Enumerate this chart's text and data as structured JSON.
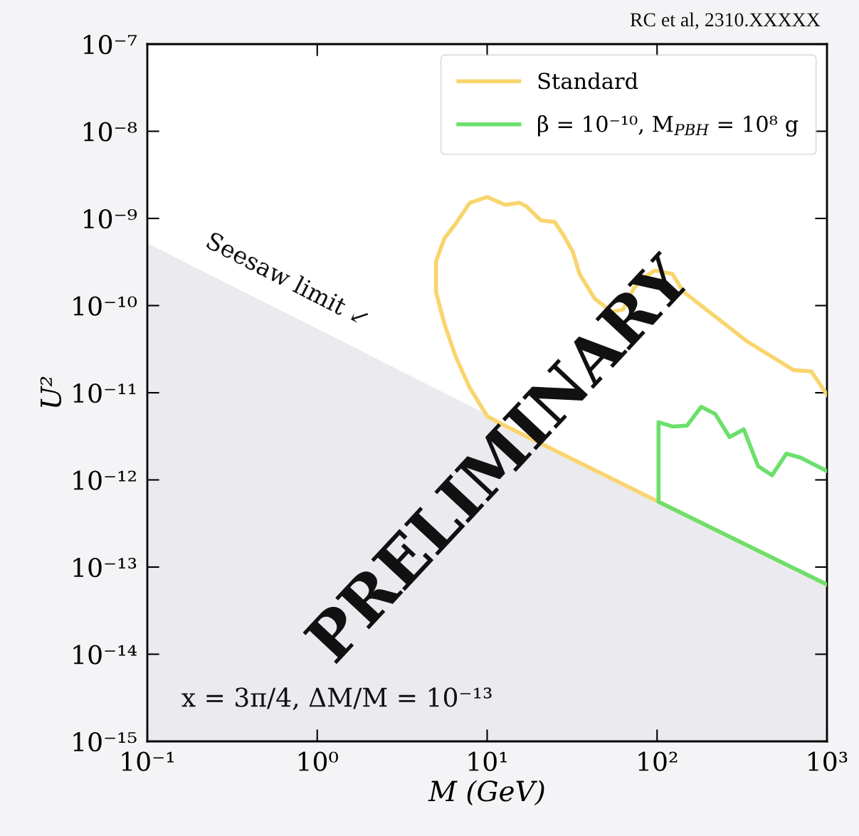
{
  "chart_data": {
    "type": "line",
    "xlabel": "M (GeV)",
    "ylabel": "U²",
    "log": "xy",
    "legend": "top right",
    "grid": false,
    "xlim": [
      0.1,
      1000
    ],
    "ylim": [
      1e-15,
      1e-07
    ],
    "xticks": [
      {
        "value": 0.1,
        "label": "10⁻¹"
      },
      {
        "value": 1,
        "label": "10⁰"
      },
      {
        "value": 10,
        "label": "10¹"
      },
      {
        "value": 100,
        "label": "10²"
      },
      {
        "value": 1000,
        "label": "10³"
      }
    ],
    "yticks": [
      {
        "value": 1e-15,
        "label": "10⁻¹⁵"
      },
      {
        "value": 1e-14,
        "label": "10⁻¹⁴"
      },
      {
        "value": 1e-13,
        "label": "10⁻¹³"
      },
      {
        "value": 1e-12,
        "label": "10⁻¹²"
      },
      {
        "value": 1e-11,
        "label": "10⁻¹¹"
      },
      {
        "value": 1e-10,
        "label": "10⁻¹⁰"
      },
      {
        "value": 1e-09,
        "label": "10⁻⁹"
      },
      {
        "value": 1e-08,
        "label": "10⁻⁸"
      },
      {
        "value": 1e-07,
        "label": "10⁻⁷"
      }
    ],
    "series": [
      {
        "type": "area",
        "color": "#ebeaef",
        "x": [
          0.1,
          1000
        ],
        "values": [
          5.2e-10,
          6.1e-14
        ]
      },
      {
        "name": "Standard",
        "color": "#f9d56e",
        "x": [
          1000,
          809,
          636,
          340,
          143,
          123,
          97,
          84,
          73,
          63,
          54,
          43,
          35,
          32,
          28,
          25,
          20.7,
          17,
          15.5,
          12.8,
          10,
          7.9,
          6.5,
          5.6,
          5.0,
          5.0,
          5.6,
          6.5,
          7.9,
          10,
          11.8,
          102,
          1000
        ],
        "values": [
          9.5e-12,
          1.76e-11,
          1.82e-11,
          3.87e-11,
          1.44e-10,
          2.31e-10,
          2.53e-10,
          2.1e-10,
          1.58e-10,
          9e-11,
          8.5e-11,
          1.2e-10,
          2.3e-10,
          4.1e-10,
          6.5e-10,
          9.1e-10,
          9.5e-10,
          1.38e-09,
          1.51e-09,
          1.43e-09,
          1.76e-09,
          1.51e-09,
          8.6e-10,
          5.9e-10,
          3.2e-10,
          1.44e-10,
          6.2e-11,
          2.65e-11,
          1.14e-11,
          5.4e-12,
          4.5e-12,
          5.6e-13,
          6.3e-14
        ]
      },
      {
        "name": "β = 10⁻¹⁰, M$_{PBH}$ = 10⁸ g",
        "color": "#6be06b",
        "x": [
          1000,
          102,
          102,
          123,
          150,
          182,
          220,
          267,
          324,
          393,
          475,
          577,
          700,
          1000
        ],
        "values": [
          6.3e-14,
          5.6e-13,
          4.6e-12,
          4.1e-12,
          4.2e-12,
          6.9e-12,
          5.7e-12,
          3.1e-12,
          3.8e-12,
          1.44e-12,
          1.13e-12,
          2e-12,
          1.8e-12,
          1.26e-12
        ]
      }
    ],
    "annotations": [
      "RC et al, 2310.XXXXX",
      "Seesaw limit ↙",
      "x = 3π/4, ΔM/M = 10⁻¹³",
      "PRELIMINARY"
    ]
  }
}
